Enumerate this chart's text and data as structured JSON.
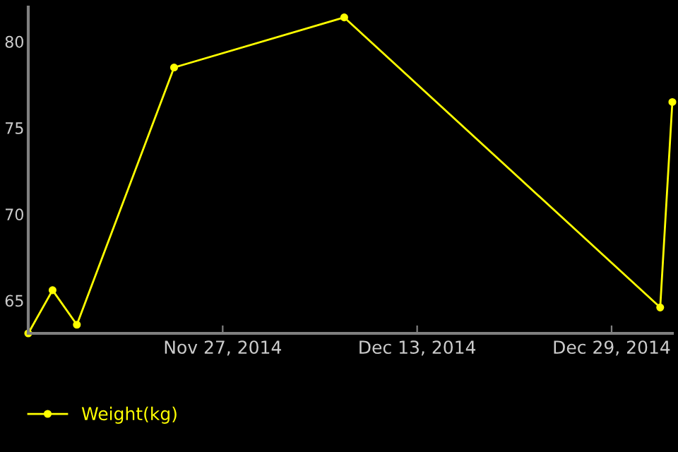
{
  "chart_data": {
    "type": "line",
    "x": [
      "2014-11-11",
      "2014-11-13",
      "2014-11-15",
      "2014-11-23",
      "2014-12-07",
      "2015-01-02",
      "2015-01-03"
    ],
    "series": [
      {
        "name": "Weight(kg)",
        "color": "#ffff00",
        "values": [
          63.1,
          65.6,
          63.6,
          78.5,
          81.4,
          64.6,
          76.5
        ]
      }
    ],
    "xlim": [
      "2014-11-11",
      "2015-01-03"
    ],
    "xticks": [
      {
        "value": "2014-11-27",
        "label": "Nov 27, 2014"
      },
      {
        "value": "2014-12-13",
        "label": "Dec 13, 2014"
      },
      {
        "value": "2014-12-29",
        "label": "Dec 29, 2014"
      }
    ],
    "ylim": [
      63.1,
      82.0
    ],
    "yticks": [
      65,
      70,
      75,
      80
    ],
    "grid": false,
    "legend": "bottom left",
    "marker": "circle",
    "line_style": "solid"
  }
}
